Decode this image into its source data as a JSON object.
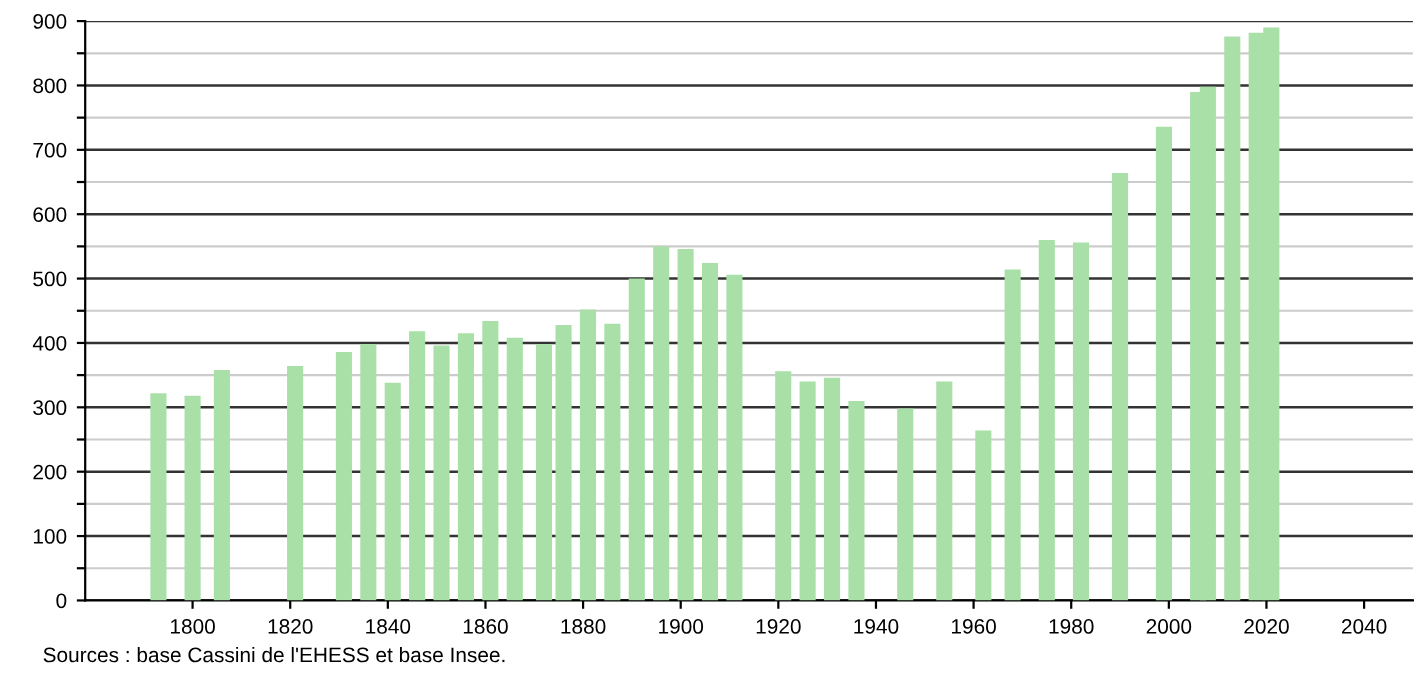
{
  "chart_data": {
    "type": "bar",
    "x": [
      1793,
      1800,
      1806,
      1821,
      1831,
      1836,
      1841,
      1846,
      1851,
      1856,
      1861,
      1866,
      1872,
      1876,
      1881,
      1886,
      1891,
      1896,
      1901,
      1906,
      1911,
      1921,
      1926,
      1931,
      1936,
      1946,
      1954,
      1962,
      1968,
      1975,
      1982,
      1990,
      1999,
      2006,
      2008,
      2013,
      2018,
      2021
    ],
    "values": [
      322,
      318,
      358,
      364,
      386,
      398,
      338,
      418,
      396,
      415,
      434,
      408,
      398,
      428,
      452,
      430,
      500,
      550,
      546,
      524,
      506,
      356,
      340,
      346,
      310,
      298,
      340,
      264,
      514,
      560,
      556,
      664,
      736,
      790,
      798,
      876,
      882,
      890
    ],
    "color": "#a8e0a8",
    "xlim": [
      1778,
      2050
    ],
    "xticks": [
      1800,
      1820,
      1840,
      1860,
      1880,
      1900,
      1920,
      1940,
      1960,
      1980,
      2000,
      2020,
      2040
    ],
    "ylim": [
      0,
      900
    ],
    "yticks": [
      0,
      {
        "value": 50,
        "label": null
      },
      100,
      {
        "value": 150,
        "label": null
      },
      200,
      {
        "value": 250,
        "label": null
      },
      300,
      {
        "value": 350,
        "label": null
      },
      400,
      {
        "value": 450,
        "label": null
      },
      500,
      {
        "value": 550,
        "label": null
      },
      600,
      {
        "value": 650,
        "label": null
      },
      700,
      {
        "value": 750,
        "label": null
      },
      800,
      {
        "value": 850,
        "label": null
      },
      900
    ],
    "grid": "y",
    "annotations": [
      "Sources : base Cassini de l'EHESS et base Insee."
    ]
  }
}
